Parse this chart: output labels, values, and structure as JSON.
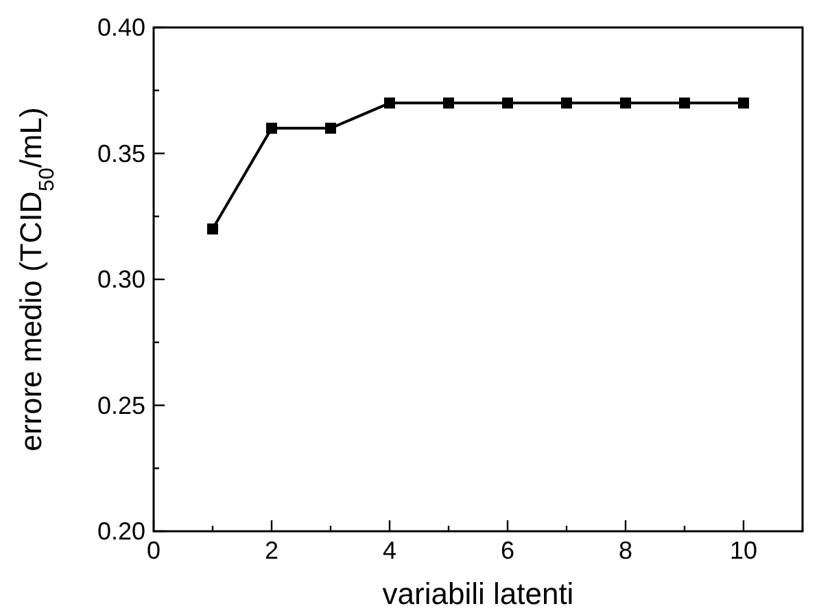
{
  "chart_data": {
    "type": "line",
    "xlabel": "variabili latenti",
    "ylabel": "errore medio (TCID$_{50}$/mL)",
    "x": [
      1,
      2,
      3,
      4,
      5,
      6,
      7,
      8,
      9,
      10
    ],
    "series": [
      {
        "color": "#000000",
        "values": [
          0.32,
          0.36,
          0.36,
          0.37,
          0.37,
          0.37,
          0.37,
          0.37,
          0.37,
          0.37
        ]
      }
    ],
    "xlim": [
      0,
      11
    ],
    "xticks": [
      0,
      {
        "value": 1,
        "label": null
      },
      2,
      {
        "value": 3,
        "label": null
      },
      4,
      {
        "value": 5,
        "label": null
      },
      6,
      {
        "value": 7,
        "label": null
      },
      8,
      {
        "value": 9,
        "label": null
      },
      10,
      {
        "value": 11,
        "label": null
      }
    ],
    "ylim": [
      0.2,
      0.4
    ],
    "yticks": [
      {
        "value": 0.2,
        "label": "0.20"
      },
      {
        "value": 0.225,
        "label": null
      },
      {
        "value": 0.25,
        "label": "0.25"
      },
      {
        "value": 0.275,
        "label": null
      },
      {
        "value": 0.3,
        "label": "0.30"
      },
      {
        "value": 0.325,
        "label": null
      },
      {
        "value": 0.35,
        "label": "0.35"
      },
      {
        "value": 0.375,
        "label": null
      },
      {
        "value": 0.4,
        "label": "0.40"
      }
    ],
    "marker": "square",
    "line_style": "solid",
    "grid": false
  }
}
